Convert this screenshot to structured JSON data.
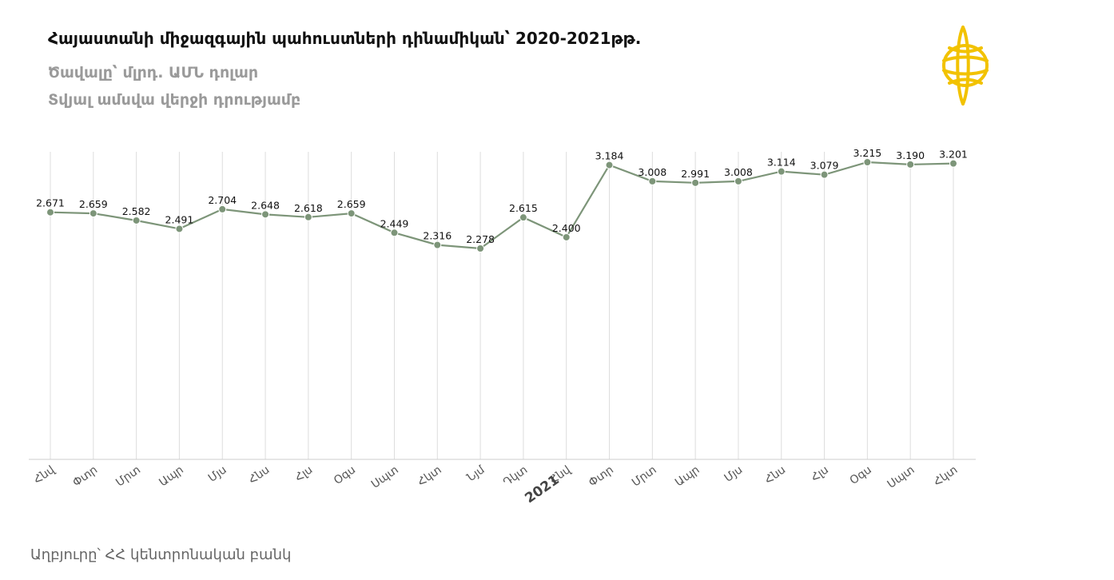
{
  "header": {
    "title": "Հայաստանի միջազգային պահուստների դինամիկան՝ 2020-2021թթ.",
    "subtitle_unit": "Ծավալը՝ մլրդ. ԱՄՆ դոլար",
    "subtitle_note": "Տվյալ ամսվա վերջի դրությամբ"
  },
  "source": "Աղբյուրը՝ ՀՀ կենտրոնական բանկ",
  "colors": {
    "line": "#7d9579",
    "marker": "#7d9579",
    "grid": "#dddddd",
    "logo": "#f2c200"
  },
  "logo_icon": "central-bank-logo-icon",
  "chart_data": {
    "type": "line",
    "title": "Հայաստանի միջազգային պահուստների դինամիկան՝ 2020-2021թթ.",
    "ylabel": "",
    "xlabel": "",
    "grid": "vertical",
    "categories": [
      "Հնվ",
      "Փտր",
      "Մրտ",
      "Ապր",
      "Մյս",
      "Հնս",
      "Հլս",
      "Օգս",
      "Սպտ",
      "Հկտ",
      "Նյմ",
      "Դկտ",
      "Հնվ",
      "Փտր",
      "Մրտ",
      "Ապր",
      "Մյս",
      "Հնս",
      "Հլս",
      "Օգս",
      "Սպտ",
      "Հկտ"
    ],
    "year_marker": {
      "index": 12,
      "label": "2021"
    },
    "series": [
      {
        "values": [
          2.671,
          2.659,
          2.582,
          2.491,
          2.704,
          2.648,
          2.618,
          2.659,
          2.449,
          2.316,
          2.278,
          2.615,
          2.4,
          3.184,
          3.008,
          2.991,
          3.008,
          3.114,
          3.079,
          3.215,
          3.19,
          3.201
        ],
        "labels": [
          "2.671",
          "2.659",
          "2.582",
          "2.491",
          "2.704",
          "2.648",
          "2.618",
          "2.659",
          "2.449",
          "2.316",
          "2.278",
          "2.615",
          "2.400",
          "3.184",
          "3.008",
          "2.991",
          "3.008",
          "3.114",
          "3.079",
          "3.215",
          "3.190",
          "3.201"
        ]
      }
    ]
  }
}
